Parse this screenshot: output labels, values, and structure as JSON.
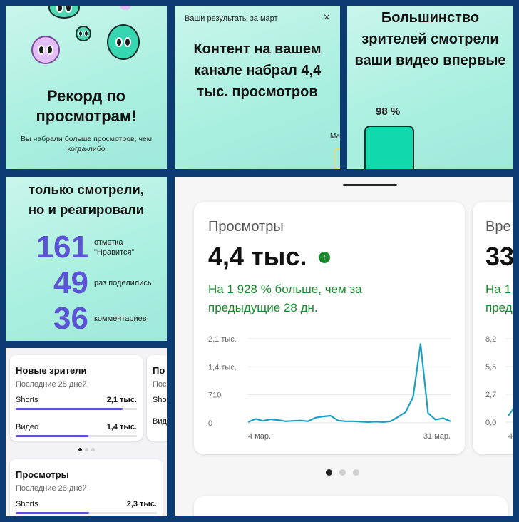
{
  "panel1": {
    "title_line1": "Рекорд по",
    "title_line2": "просмотрам!",
    "subtitle": "Вы набрали больше просмотров, чем когда-либо"
  },
  "panel2": {
    "header": "Ваши результаты за март",
    "close": "×",
    "title": "Контент на вашем канале набрал 4,4 тыс. просмотров",
    "cut_text": "Ма"
  },
  "panel3": {
    "title": "Большинство зрителей смотрели ваши видео впервые",
    "percent": "98 %"
  },
  "panel4": {
    "title_line1": "только смотрели,",
    "title_line2": "но и реагировали",
    "stats": [
      {
        "num": "161",
        "label_line1": "отметка",
        "label_line2": "\"Нравится\""
      },
      {
        "num": "49",
        "label_line1": "раз поделились",
        "label_line2": ""
      },
      {
        "num": "36",
        "label_line1": "комментариев",
        "label_line2": ""
      }
    ]
  },
  "panel5": {
    "card1": {
      "title": "Новые зрители",
      "subtitle": "Последние 28 дней",
      "rows": [
        {
          "label": "Shorts",
          "value": "2,1 тыс.",
          "fill": 0.88
        },
        {
          "label": "Видео",
          "value": "1,4 тыс.",
          "fill": 0.6
        }
      ]
    },
    "card1b": {
      "title": "По",
      "subtitle": "Пос",
      "row1": "Sho",
      "row2": "Вид"
    },
    "card2": {
      "title": "Просмотры",
      "subtitle": "Последние 28 дней",
      "rows": [
        {
          "label": "Shorts",
          "value": "2,3 тыс.",
          "fill": 0.52
        }
      ]
    }
  },
  "panel6": {
    "card": {
      "title": "Просмотры",
      "value": "4,4 тыс.",
      "up_icon": "↑",
      "delta": "На 1 928 % больше, чем за предыдущие 28 дн."
    },
    "card2": {
      "title": "Вре",
      "value": "33",
      "delta_line1": "На 1",
      "delta_line2": "пред"
    },
    "card2_yticks": [
      "8,2",
      "5,5",
      "2,7",
      "0,0"
    ],
    "card2_xtick": "4"
  },
  "chart_data": {
    "type": "line",
    "title": "Просмотры",
    "xlabel": "",
    "ylabel": "",
    "x_tick_labels": [
      "4 мар.",
      "31 мар."
    ],
    "y_tick_labels": [
      "2,1 тыс.",
      "1,4 тыс.",
      "710",
      "0"
    ],
    "ylim": [
      0,
      2130
    ],
    "grid": true,
    "color": "#1a9ec2",
    "series": [
      {
        "values": [
          20,
          100,
          50,
          90,
          70,
          40,
          50,
          60,
          40,
          130,
          160,
          180,
          60,
          40,
          40,
          30,
          20,
          30,
          20,
          40,
          150,
          270,
          650,
          2000,
          250,
          80,
          120,
          40
        ]
      }
    ]
  }
}
